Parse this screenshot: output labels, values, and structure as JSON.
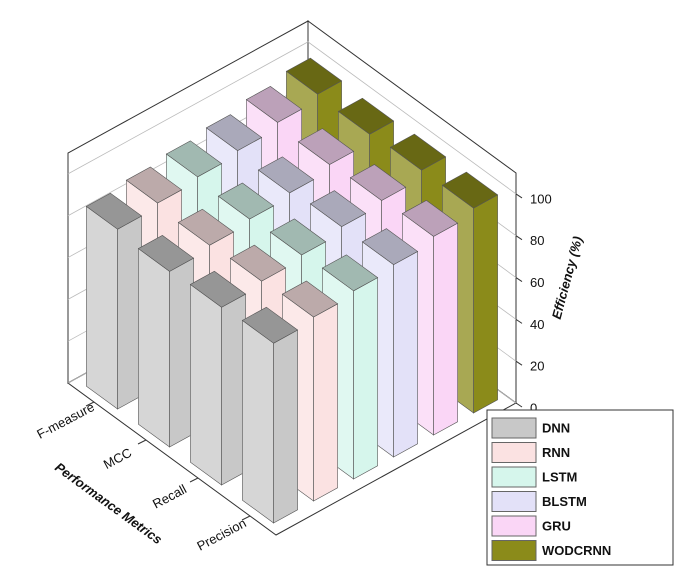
{
  "chart_data": {
    "type": "bar3d",
    "x_label": "Performance Metrics",
    "y_label": "Efficiency (%)",
    "categories": [
      "F-measure",
      "MCC",
      "Recall",
      "Precision"
    ],
    "series": [
      {
        "name": "DNN",
        "color": "#c8c8c8",
        "values": [
          86,
          84,
          85,
          86
        ]
      },
      {
        "name": "RNN",
        "color": "#fbe2e2",
        "values": [
          88,
          86,
          87,
          88
        ]
      },
      {
        "name": "LSTM",
        "color": "#d6f6ec",
        "values": [
          90,
          88,
          89,
          90
        ]
      },
      {
        "name": "BLSTM",
        "color": "#e3e1f8",
        "values": [
          92,
          90,
          92,
          92
        ]
      },
      {
        "name": "GRU",
        "color": "#fad6f6",
        "values": [
          95,
          93,
          94,
          95
        ]
      },
      {
        "name": "WODCRNN",
        "color": "#8b8b1a",
        "values": [
          98,
          97,
          98,
          98
        ]
      }
    ],
    "ylim": [
      0,
      110
    ],
    "yticks": [
      0,
      20,
      40,
      60,
      80,
      100
    ],
    "grid": true
  }
}
